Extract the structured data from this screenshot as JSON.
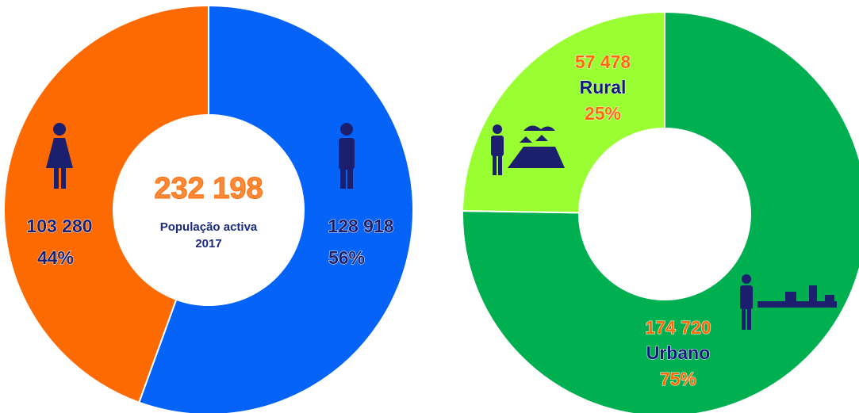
{
  "chart_data": [
    {
      "type": "pie",
      "hole": true,
      "categories": [
        null,
        null
      ],
      "values": [
        128918,
        103280
      ],
      "value_labels": [
        "128 918",
        "103 280"
      ],
      "percents": [
        56,
        44
      ],
      "percent_labels": [
        "56%",
        "44%"
      ],
      "colors": [
        "#0563f7",
        "#fd6a02"
      ],
      "total": 232198,
      "total_label": "232 198",
      "center_text": [
        "População activa",
        "2017"
      ]
    },
    {
      "type": "pie",
      "hole": true,
      "categories": [
        "Urbano",
        "Rural"
      ],
      "values": [
        174720,
        57478
      ],
      "value_labels": [
        "174 720",
        "57 478"
      ],
      "percents": [
        75,
        25
      ],
      "percent_labels": [
        "75%",
        "25%"
      ],
      "colors": [
        "#00b050",
        "#99ff33"
      ]
    }
  ]
}
